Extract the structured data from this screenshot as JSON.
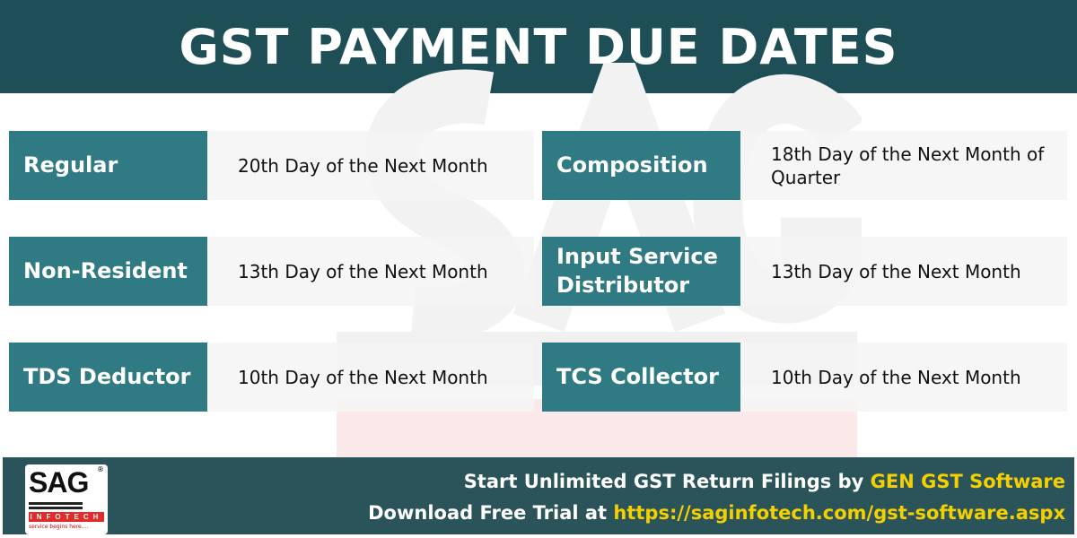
{
  "header": {
    "title": "GST PAYMENT DUE DATES"
  },
  "watermark": {
    "text": "SAG",
    "subtext": "INFOTECH"
  },
  "rows": [
    {
      "label": "Regular",
      "value": "20th Day of the Next Month"
    },
    {
      "label": "Composition",
      "value": "18th Day of the Next Month of Quarter"
    },
    {
      "label": "Non-Resident",
      "value": "13th Day of the Next Month"
    },
    {
      "label": "Input Service Distributor",
      "value": "13th Day of the Next Month"
    },
    {
      "label": "TDS Deductor",
      "value": "10th Day of the Next Month"
    },
    {
      "label": "TCS Collector",
      "value": "10th Day of the Next Month"
    }
  ],
  "footer": {
    "logo": {
      "name": "SAG",
      "sub": "INFOTECH",
      "tagline": "service begins here....",
      "reg": "®"
    },
    "line1_prefix": "Start Unlimited GST Return Filings by ",
    "line1_highlight": "GEN GST Software",
    "line2_prefix": "Download Free Trial at ",
    "line2_highlight": "https://saginfotech.com/gst-software.aspx"
  },
  "colors": {
    "header": "#1f4f56",
    "label": "#2f7a83",
    "footer": "#2a545a",
    "highlight": "#f5d000"
  }
}
